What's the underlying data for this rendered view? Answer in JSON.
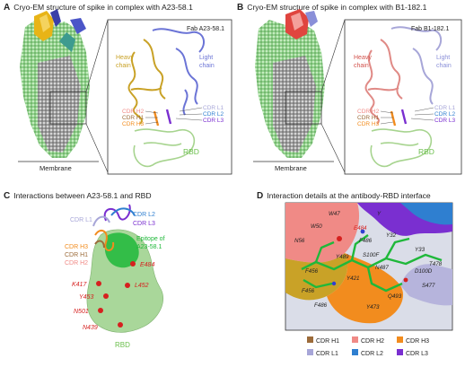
{
  "panels": {
    "A": {
      "letter": "A",
      "title": "Cryo-EM structure of spike in complex with A23-58.1",
      "fab": "Fab A23-58.1",
      "heavy_l1": "Heavy",
      "heavy_l2": "chain",
      "light_l1": "Light",
      "light_l2": "chain",
      "cdr_h2": "CDR H2",
      "cdr_h1": "CDR H1",
      "cdr_h3": "CDR H3",
      "cdr_l1": "CDR L1",
      "cdr_l2": "CDR L2",
      "cdr_l3": "CDR L3",
      "rbd": "RBD",
      "membrane": "Membrane"
    },
    "B": {
      "letter": "B",
      "title": "Cryo-EM structure of spike in complex with B1-182.1",
      "fab": "Fab B1-182.1",
      "heavy_l1": "Heavy",
      "heavy_l2": "chain",
      "light_l1": "Light",
      "light_l2": "chain",
      "cdr_h2": "CDR H2",
      "cdr_h1": "CDR H1",
      "cdr_h3": "CDR H3",
      "cdr_l1": "CDR L1",
      "cdr_l2": "CDR L2",
      "cdr_l3": "CDR L3",
      "rbd": "RBD",
      "membrane": "Membrane"
    },
    "C": {
      "letter": "C",
      "title": "Interactions between A23-58.1 and RBD",
      "cdr_l1": "CDR L1",
      "cdr_l2": "CDR L2",
      "cdr_l3": "CDR L3",
      "cdr_h3": "CDR H3",
      "cdr_h1": "CDR H1",
      "cdr_h2": "CDR H2",
      "epitope_l1": "Epitope of",
      "epitope_l2": "A23-58.1",
      "residues": [
        "E484",
        "K417",
        "L452",
        "Y453",
        "N501",
        "N439"
      ],
      "rbd": "RBD"
    },
    "D": {
      "letter": "D",
      "title": "Interaction details at the antibody-RBD interface",
      "labels": [
        "W47",
        "Y",
        "W50",
        "E484",
        "N56",
        "F486",
        "Y32",
        "Y489",
        "S100F",
        "N487",
        "Y33",
        "T478",
        "F456",
        "D100D",
        "Y421",
        "F456",
        "S477",
        "F486",
        "Y473",
        "Q493"
      ],
      "legend": [
        {
          "label": "CDR H1",
          "color": "#9c6b3a"
        },
        {
          "label": "CDR H2",
          "color": "#f08a86"
        },
        {
          "label": "CDR H3",
          "color": "#f28c1e"
        },
        {
          "label": "CDR L1",
          "color": "#a7a6d8"
        },
        {
          "label": "CDR L2",
          "color": "#2f7fd0"
        },
        {
          "label": "CDR L3",
          "color": "#7a2fd0"
        }
      ]
    }
  },
  "colors": {
    "rbd_green": "#7fbf5f",
    "rbd_label": "#6abf4b",
    "heavy": "#c9a227",
    "light": "#6b74d6",
    "residue_red": "#d6201f",
    "epitope": "#1fb83a"
  }
}
